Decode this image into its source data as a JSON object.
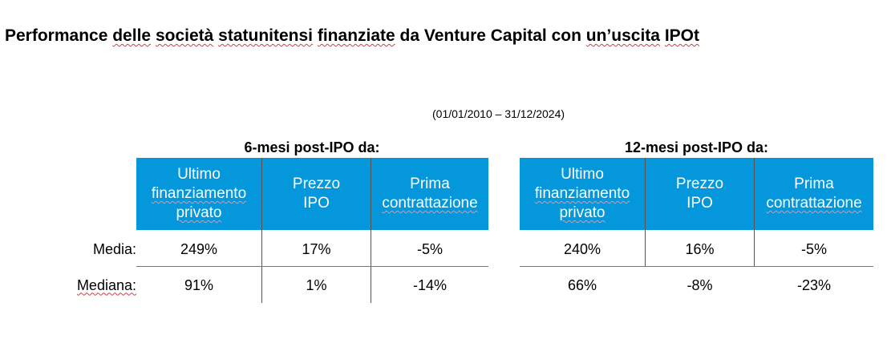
{
  "title_parts": {
    "p1": "Performance ",
    "p2": "delle",
    "p3": " ",
    "p4": "società",
    "p5": " ",
    "p6": "statunitensi",
    "p7": " ",
    "p8": "finanziate",
    "p9": " da Venture Capital con ",
    "p10": "un’uscita",
    "p11": " ",
    "p12": "IPOt"
  },
  "period": "(01/01/2010 – 31/12/2024)",
  "row_labels": {
    "mean": "Media:",
    "median": "Mediana:"
  },
  "group_6m": {
    "title": "6-mesi post-IPO da:",
    "headers": [
      {
        "l1": "Ultimo",
        "l2": "finanziamento",
        "l3": "privato"
      },
      {
        "l1": "Prezzo",
        "l2": "IPO"
      },
      {
        "l1": "Prima",
        "l2": "contrattazione"
      }
    ],
    "mean": [
      "249%",
      "17%",
      "-5%"
    ],
    "median": [
      "91%",
      "1%",
      "-14%"
    ]
  },
  "group_12m": {
    "title": "12-mesi post-IPO da:",
    "headers": [
      {
        "l1": "Ultimo",
        "l2": "finanziamento",
        "l3": "privato"
      },
      {
        "l1": "Prezzo",
        "l2": "IPO"
      },
      {
        "l1": "Prima",
        "l2": "contrattazione"
      }
    ],
    "mean": [
      "240%",
      "16%",
      "-5%"
    ],
    "median": [
      "66%",
      "-8%",
      "-23%"
    ]
  },
  "colors": {
    "header_bg": "#0497db",
    "header_text": "#ffffff"
  }
}
